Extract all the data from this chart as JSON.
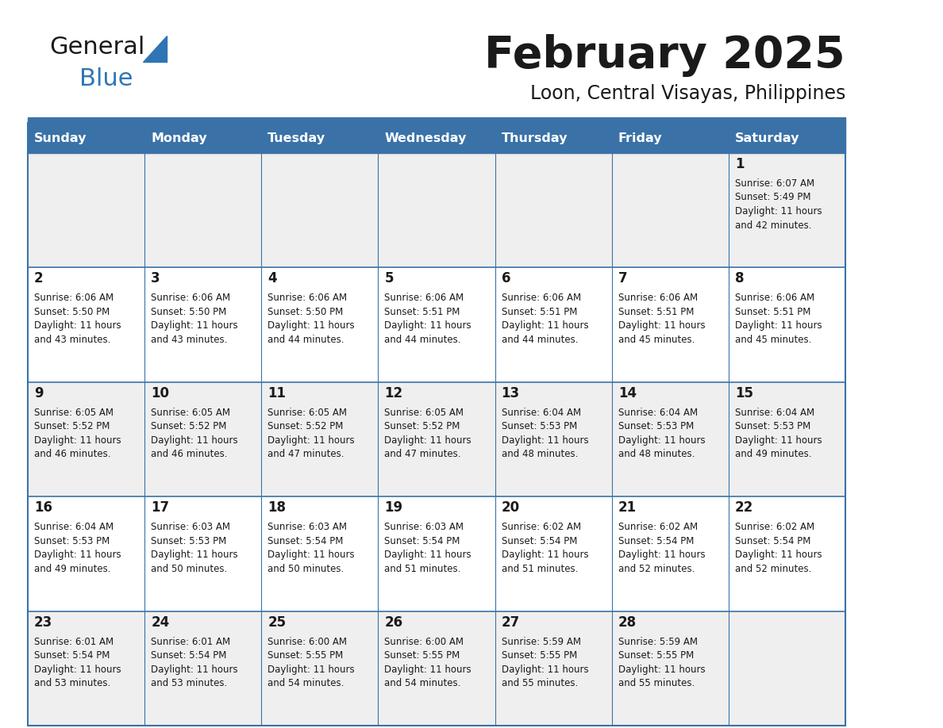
{
  "title": "February 2025",
  "subtitle": "Loon, Central Visayas, Philippines",
  "header_color": "#3A72A8",
  "header_text_color": "#FFFFFF",
  "day_names": [
    "Sunday",
    "Monday",
    "Tuesday",
    "Wednesday",
    "Thursday",
    "Friday",
    "Saturday"
  ],
  "background_color": "#FFFFFF",
  "cell_bg_even": "#EFEFEF",
  "cell_bg_odd": "#FFFFFF",
  "separator_color": "#3A72A8",
  "border_color": "#3A72A8",
  "day_number_color": "#1a1a1a",
  "info_text_color": "#1a1a1a",
  "logo_general_color": "#1a1a1a",
  "logo_blue_color": "#2E75B6",
  "logo_triangle_color": "#2E75B6",
  "title_color": "#1a1a1a",
  "subtitle_color": "#1a1a1a",
  "calendar_data": [
    [
      null,
      null,
      null,
      null,
      null,
      null,
      {
        "day": 1,
        "sunrise": "6:07 AM",
        "sunset": "5:49 PM",
        "daylight_h": "11 hours",
        "daylight_m": "42 minutes."
      }
    ],
    [
      {
        "day": 2,
        "sunrise": "6:06 AM",
        "sunset": "5:50 PM",
        "daylight_h": "11 hours",
        "daylight_m": "43 minutes."
      },
      {
        "day": 3,
        "sunrise": "6:06 AM",
        "sunset": "5:50 PM",
        "daylight_h": "11 hours",
        "daylight_m": "43 minutes."
      },
      {
        "day": 4,
        "sunrise": "6:06 AM",
        "sunset": "5:50 PM",
        "daylight_h": "11 hours",
        "daylight_m": "44 minutes."
      },
      {
        "day": 5,
        "sunrise": "6:06 AM",
        "sunset": "5:51 PM",
        "daylight_h": "11 hours",
        "daylight_m": "44 minutes."
      },
      {
        "day": 6,
        "sunrise": "6:06 AM",
        "sunset": "5:51 PM",
        "daylight_h": "11 hours",
        "daylight_m": "44 minutes."
      },
      {
        "day": 7,
        "sunrise": "6:06 AM",
        "sunset": "5:51 PM",
        "daylight_h": "11 hours",
        "daylight_m": "45 minutes."
      },
      {
        "day": 8,
        "sunrise": "6:06 AM",
        "sunset": "5:51 PM",
        "daylight_h": "11 hours",
        "daylight_m": "45 minutes."
      }
    ],
    [
      {
        "day": 9,
        "sunrise": "6:05 AM",
        "sunset": "5:52 PM",
        "daylight_h": "11 hours",
        "daylight_m": "46 minutes."
      },
      {
        "day": 10,
        "sunrise": "6:05 AM",
        "sunset": "5:52 PM",
        "daylight_h": "11 hours",
        "daylight_m": "46 minutes."
      },
      {
        "day": 11,
        "sunrise": "6:05 AM",
        "sunset": "5:52 PM",
        "daylight_h": "11 hours",
        "daylight_m": "47 minutes."
      },
      {
        "day": 12,
        "sunrise": "6:05 AM",
        "sunset": "5:52 PM",
        "daylight_h": "11 hours",
        "daylight_m": "47 minutes."
      },
      {
        "day": 13,
        "sunrise": "6:04 AM",
        "sunset": "5:53 PM",
        "daylight_h": "11 hours",
        "daylight_m": "48 minutes."
      },
      {
        "day": 14,
        "sunrise": "6:04 AM",
        "sunset": "5:53 PM",
        "daylight_h": "11 hours",
        "daylight_m": "48 minutes."
      },
      {
        "day": 15,
        "sunrise": "6:04 AM",
        "sunset": "5:53 PM",
        "daylight_h": "11 hours",
        "daylight_m": "49 minutes."
      }
    ],
    [
      {
        "day": 16,
        "sunrise": "6:04 AM",
        "sunset": "5:53 PM",
        "daylight_h": "11 hours",
        "daylight_m": "49 minutes."
      },
      {
        "day": 17,
        "sunrise": "6:03 AM",
        "sunset": "5:53 PM",
        "daylight_h": "11 hours",
        "daylight_m": "50 minutes."
      },
      {
        "day": 18,
        "sunrise": "6:03 AM",
        "sunset": "5:54 PM",
        "daylight_h": "11 hours",
        "daylight_m": "50 minutes."
      },
      {
        "day": 19,
        "sunrise": "6:03 AM",
        "sunset": "5:54 PM",
        "daylight_h": "11 hours",
        "daylight_m": "51 minutes."
      },
      {
        "day": 20,
        "sunrise": "6:02 AM",
        "sunset": "5:54 PM",
        "daylight_h": "11 hours",
        "daylight_m": "51 minutes."
      },
      {
        "day": 21,
        "sunrise": "6:02 AM",
        "sunset": "5:54 PM",
        "daylight_h": "11 hours",
        "daylight_m": "52 minutes."
      },
      {
        "day": 22,
        "sunrise": "6:02 AM",
        "sunset": "5:54 PM",
        "daylight_h": "11 hours",
        "daylight_m": "52 minutes."
      }
    ],
    [
      {
        "day": 23,
        "sunrise": "6:01 AM",
        "sunset": "5:54 PM",
        "daylight_h": "11 hours",
        "daylight_m": "53 minutes."
      },
      {
        "day": 24,
        "sunrise": "6:01 AM",
        "sunset": "5:54 PM",
        "daylight_h": "11 hours",
        "daylight_m": "53 minutes."
      },
      {
        "day": 25,
        "sunrise": "6:00 AM",
        "sunset": "5:55 PM",
        "daylight_h": "11 hours",
        "daylight_m": "54 minutes."
      },
      {
        "day": 26,
        "sunrise": "6:00 AM",
        "sunset": "5:55 PM",
        "daylight_h": "11 hours",
        "daylight_m": "54 minutes."
      },
      {
        "day": 27,
        "sunrise": "5:59 AM",
        "sunset": "5:55 PM",
        "daylight_h": "11 hours",
        "daylight_m": "55 minutes."
      },
      {
        "day": 28,
        "sunrise": "5:59 AM",
        "sunset": "5:55 PM",
        "daylight_h": "11 hours",
        "daylight_m": "55 minutes."
      },
      null
    ]
  ]
}
